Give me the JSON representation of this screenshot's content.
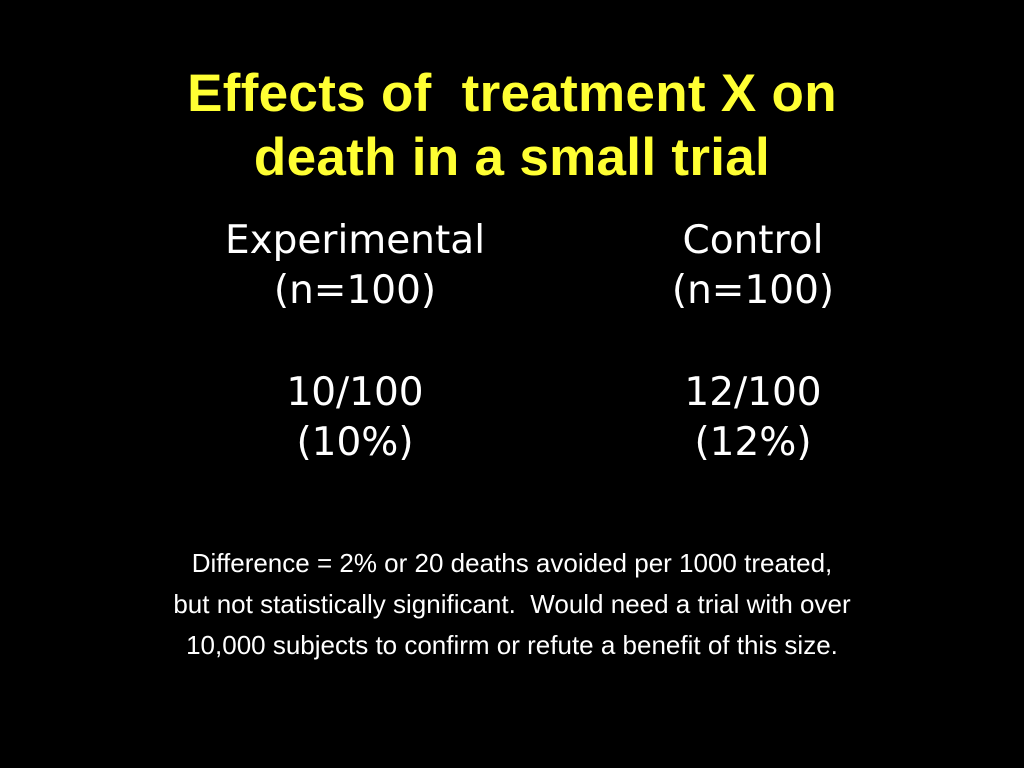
{
  "slide": {
    "background_color": "#000000",
    "title": {
      "line1": "Effects of  treatment X on",
      "line2": "death in a small trial",
      "color": "#ffff33"
    },
    "groups": [
      {
        "name": "Experimental",
        "n_label": "(n=100)",
        "deaths": "10/100",
        "percent": "(10%)"
      },
      {
        "name": "Control",
        "n_label": "(n=100)",
        "deaths": "12/100",
        "percent": "(12%)"
      }
    ],
    "note": {
      "line1": "Difference = 2% or 20 deaths avoided per 1000 treated,",
      "line2": "but not statistically significant.  Would need a trial with over",
      "line3": "10,000 subjects to confirm or refute a benefit of this size."
    }
  }
}
